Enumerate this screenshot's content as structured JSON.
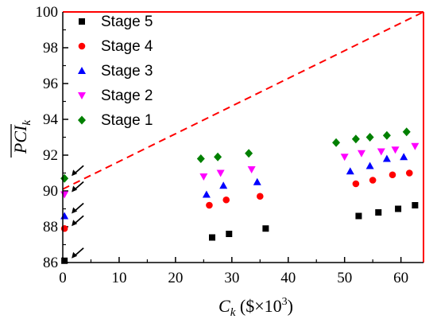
{
  "chart_data": {
    "type": "scatter",
    "xlabel": {
      "main": "C",
      "sub": "k",
      "unit_open": " ($×10",
      "sup": "3",
      "unit_close": ")"
    },
    "ylabel": {
      "main": "PCI",
      "sub": "k"
    },
    "xlim": [
      0,
      64
    ],
    "ylim": [
      86,
      100
    ],
    "x_ticks": [
      "0",
      "10",
      "20",
      "30",
      "40",
      "50",
      "60"
    ],
    "y_ticks": [
      "86",
      "88",
      "90",
      "92",
      "94",
      "96",
      "98",
      "100"
    ],
    "grid": false,
    "legend_position": "top-left",
    "series": [
      {
        "name": "Stage 5",
        "marker": "square",
        "color": "#000000",
        "points": [
          [
            0.3,
            86.1
          ],
          [
            26.5,
            87.4
          ],
          [
            29.5,
            87.6
          ],
          [
            36.0,
            87.9
          ],
          [
            52.5,
            88.6
          ],
          [
            56.0,
            88.8
          ],
          [
            59.5,
            89.0
          ],
          [
            62.5,
            89.2
          ]
        ]
      },
      {
        "name": "Stage 4",
        "marker": "circle",
        "color": "#ff0000",
        "points": [
          [
            0.3,
            87.9
          ],
          [
            26.0,
            89.2
          ],
          [
            29.0,
            89.5
          ],
          [
            35.0,
            89.7
          ],
          [
            52.0,
            90.4
          ],
          [
            55.0,
            90.6
          ],
          [
            58.5,
            90.9
          ],
          [
            61.5,
            91.0
          ]
        ]
      },
      {
        "name": "Stage 3",
        "marker": "triangle-up",
        "color": "#0000ff",
        "points": [
          [
            0.3,
            88.6
          ],
          [
            25.5,
            89.8
          ],
          [
            28.5,
            90.3
          ],
          [
            34.5,
            90.5
          ],
          [
            51.0,
            91.1
          ],
          [
            54.5,
            91.4
          ],
          [
            57.5,
            91.8
          ],
          [
            60.5,
            91.9
          ]
        ]
      },
      {
        "name": "Stage 2",
        "marker": "triangle-down",
        "color": "#ff00ff",
        "points": [
          [
            0.3,
            89.8
          ],
          [
            25.0,
            90.8
          ],
          [
            28.0,
            91.0
          ],
          [
            33.5,
            91.2
          ],
          [
            50.0,
            91.9
          ],
          [
            53.0,
            92.1
          ],
          [
            56.5,
            92.2
          ],
          [
            59.0,
            92.3
          ],
          [
            62.5,
            92.5
          ]
        ]
      },
      {
        "name": "Stage 1",
        "marker": "diamond",
        "color": "#008000",
        "points": [
          [
            0.3,
            90.7
          ],
          [
            24.5,
            91.8
          ],
          [
            27.5,
            91.9
          ],
          [
            33.0,
            92.1
          ],
          [
            48.5,
            92.7
          ],
          [
            52.0,
            92.9
          ],
          [
            54.5,
            93.0
          ],
          [
            57.5,
            93.1
          ],
          [
            61.0,
            93.3
          ]
        ]
      }
    ],
    "reference_line": {
      "style": "dashed",
      "color": "#ff0000",
      "from": [
        0,
        90.1
      ],
      "to": [
        64,
        100
      ]
    },
    "frame_color": "#ff0000",
    "arrow_annotations": [
      [
        0.3,
        90.7
      ],
      [
        0.3,
        89.8
      ],
      [
        0.3,
        88.6
      ],
      [
        0.3,
        87.9
      ],
      [
        0.3,
        86.1
      ]
    ]
  }
}
